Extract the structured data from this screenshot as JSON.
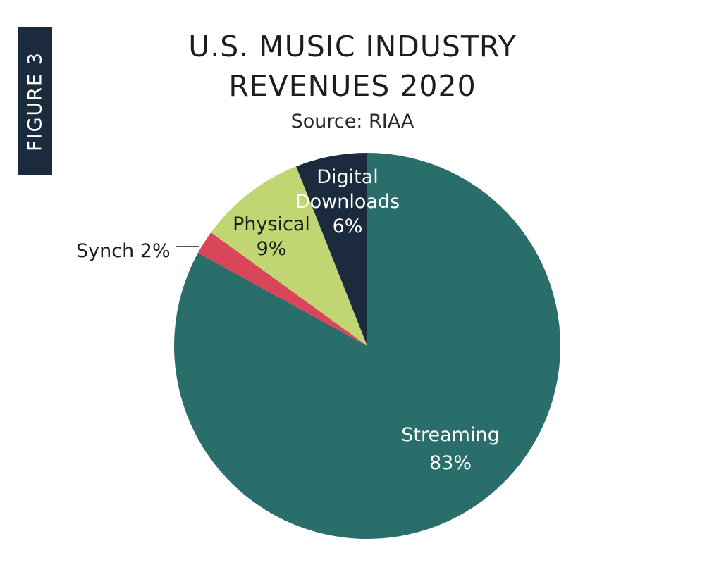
{
  "figure_label": "FIGURE 3",
  "chart_data": {
    "type": "pie",
    "title": [
      "U.S. MUSIC INDUSTRY",
      "REVENUES 2020"
    ],
    "subtitle": "Source: RIAA",
    "start_angle_deg": 0,
    "direction": "clockwise",
    "slices": [
      {
        "label": "Streaming",
        "value": 83,
        "value_label": "83%",
        "color": "#2a6e6b",
        "label_color": "#ffffff"
      },
      {
        "label": "Synch",
        "value": 2,
        "value_label": "2%",
        "color": "#d9465a",
        "label_color": "#1d1d1d"
      },
      {
        "label": "Physical",
        "value": 9,
        "value_label": "9%",
        "color": "#c1d672",
        "label_color": "#1d1d1d"
      },
      {
        "label": "Digital Downloads",
        "value": 6,
        "value_label": "6%",
        "color": "#1b2b3d",
        "label_color": "#ffffff"
      }
    ],
    "label_lines": {
      "Streaming": [
        "Streaming",
        "83%"
      ],
      "Synch": [
        "Synch 2%"
      ],
      "Physical": [
        "Physical",
        "9%"
      ],
      "Digital Downloads": [
        "Digital",
        "Downloads",
        "6%"
      ]
    },
    "legend": "none"
  }
}
